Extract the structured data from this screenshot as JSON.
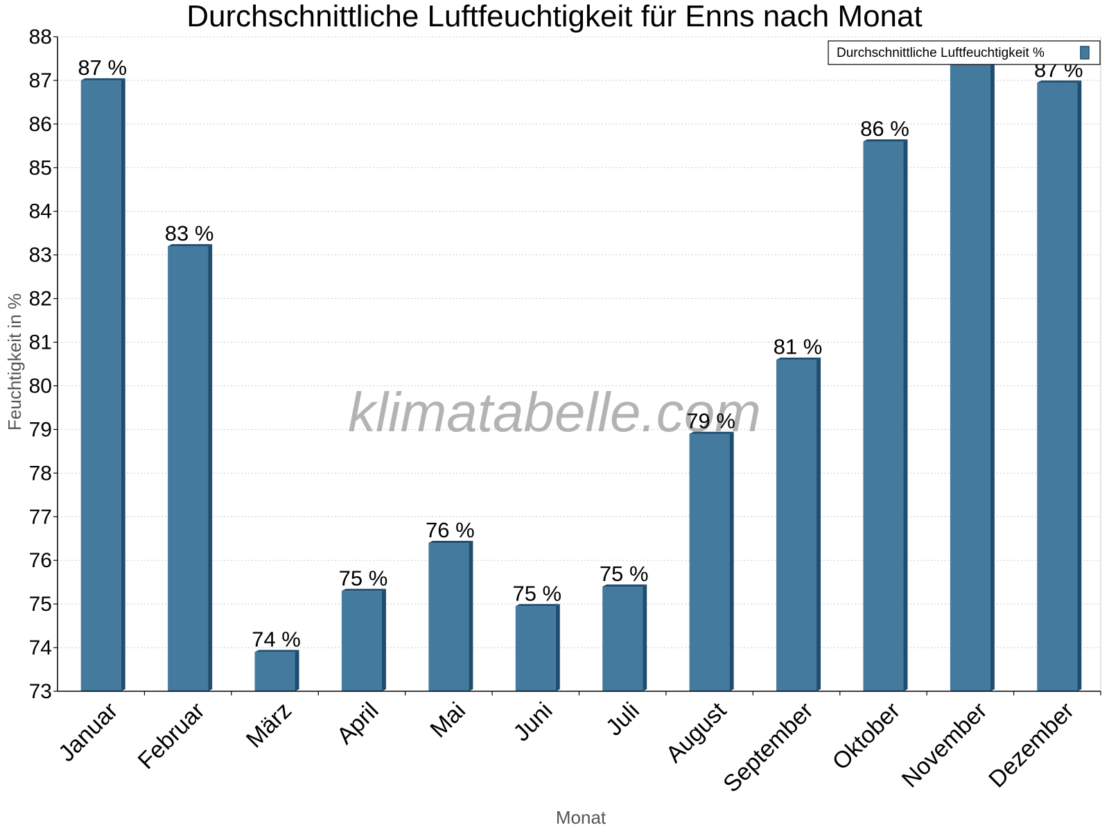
{
  "chart_data": {
    "type": "bar",
    "title": "Durchschnittliche Luftfeuchtigkeit für Enns nach Monat",
    "xlabel": "Monat",
    "ylabel": "Feuchtigkeit in %",
    "ylim": [
      73,
      88
    ],
    "yticks": [
      "73",
      "74",
      "75",
      "76",
      "77",
      "78",
      "79",
      "80",
      "81",
      "82",
      "83",
      "84",
      "85",
      "86",
      "87",
      "88"
    ],
    "grid": true,
    "legend_position": "top-right",
    "categories": [
      "Januar",
      "Februar",
      "März",
      "April",
      "Mai",
      "Juni",
      "Juli",
      "August",
      "September",
      "Oktober",
      "November",
      "Dezember"
    ],
    "series": [
      {
        "name": "Durchschnittliche Luftfeuchtigkeit %",
        "values": [
          87.0,
          83.2,
          73.9,
          75.3,
          76.4,
          74.95,
          75.4,
          78.9,
          80.6,
          85.6,
          87.4,
          86.95
        ],
        "labels": [
          "87 %",
          "83 %",
          "74 %",
          "75 %",
          "76 %",
          "75 %",
          "75 %",
          "79 %",
          "81 %",
          "86 %",
          "",
          "87 %"
        ]
      }
    ],
    "colors": {
      "bar": "#447a9e",
      "bar_side": "#1e4d6f",
      "grid": "#c8c8c8"
    },
    "watermark": "klimatabelle.com"
  }
}
